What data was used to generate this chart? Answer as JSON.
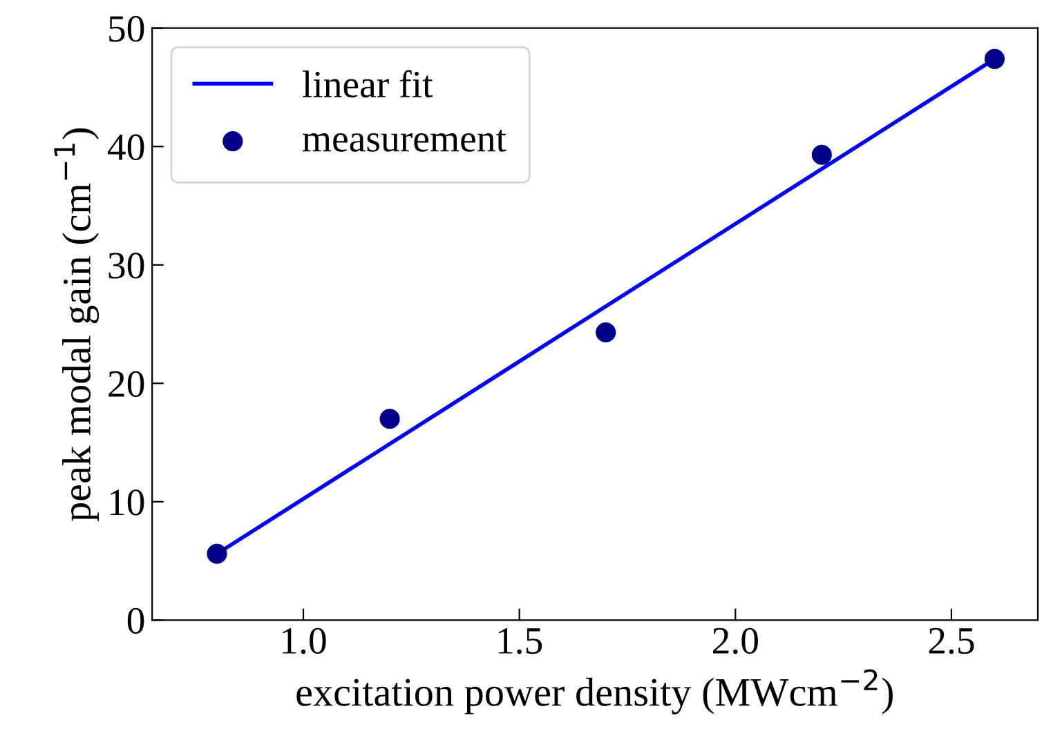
{
  "chart_data": {
    "type": "scatter",
    "xlabel": "excitation power density (MWcm$^{−2}$)",
    "ylabel": "peak modal gain (cm$^{−1}$)",
    "series": [
      {
        "name": "linear fit",
        "type": "line",
        "color": "#0000ff",
        "x": [
          0.8,
          2.6
        ],
        "values": [
          5.6,
          47.4
        ],
        "marker": "none",
        "line_style": "solid"
      },
      {
        "name": "measurement",
        "color": "#00008b",
        "x": [
          0.8,
          1.2,
          1.7,
          2.2,
          2.6
        ],
        "values": [
          5.6,
          17.0,
          24.3,
          39.3,
          47.4
        ],
        "marker": "circle"
      }
    ],
    "xlim": [
      0.65,
      2.7
    ],
    "ylim": [
      0,
      50
    ],
    "xticks": [
      {
        "value": 1.0,
        "label": "1.0"
      },
      1.5,
      {
        "value": 2.0,
        "label": "2.0"
      },
      2.5
    ],
    "yticks": [
      0,
      10,
      20,
      30,
      40,
      50
    ],
    "legend": "top left",
    "grid": false
  }
}
